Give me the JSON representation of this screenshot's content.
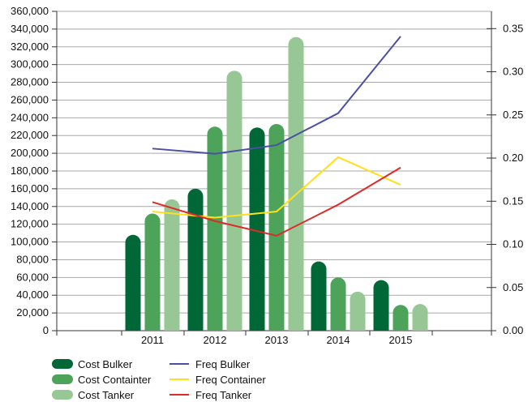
{
  "chart_data": {
    "type": "bar",
    "title": "",
    "xlabel": "",
    "ylabel": "",
    "categories": [
      "2011",
      "2012",
      "2013",
      "2014",
      "2015"
    ],
    "ylim": [
      0,
      360000
    ],
    "y_ticks": [
      "0",
      "20,000",
      "40,000",
      "60,000",
      "80,000",
      "100,000",
      "120,000",
      "140,000",
      "160,000",
      "180,000",
      "200,000",
      "220,000",
      "240,000",
      "260,000",
      "280,000",
      "300,000",
      "320,000",
      "340,000",
      "360,000"
    ],
    "y2lim": [
      0,
      0.37
    ],
    "y2_ticks": [
      "0.00",
      "0.05",
      "0.10",
      "0.15",
      "0.20",
      "0.25",
      "0.30",
      "0.35"
    ],
    "series": [
      {
        "name": "Cost Bulker",
        "kind": "bar",
        "color": "#006837",
        "values": [
          108000,
          160000,
          229000,
          78000,
          57000
        ]
      },
      {
        "name": "Cost Containter",
        "kind": "bar",
        "color": "#4da35a",
        "values": [
          132000,
          230000,
          233000,
          60000,
          29000
        ]
      },
      {
        "name": "Cost Tanker",
        "kind": "bar",
        "color": "#98c796",
        "values": [
          148000,
          293000,
          331000,
          44000,
          30000
        ]
      },
      {
        "name": "Freq Bulker",
        "kind": "line",
        "color": "#4b4fa6",
        "values": [
          0.211,
          0.205,
          0.215,
          0.252,
          0.341
        ]
      },
      {
        "name": "Freq Container",
        "kind": "line",
        "color": "#ffe01b",
        "values": [
          0.138,
          0.131,
          0.138,
          0.201,
          0.169
        ]
      },
      {
        "name": "Freq Tanker",
        "kind": "line",
        "color": "#e02a28",
        "values": [
          0.149,
          0.127,
          0.11,
          0.146,
          0.189
        ]
      }
    ],
    "legend_position": "bottom-left",
    "grid": true
  }
}
